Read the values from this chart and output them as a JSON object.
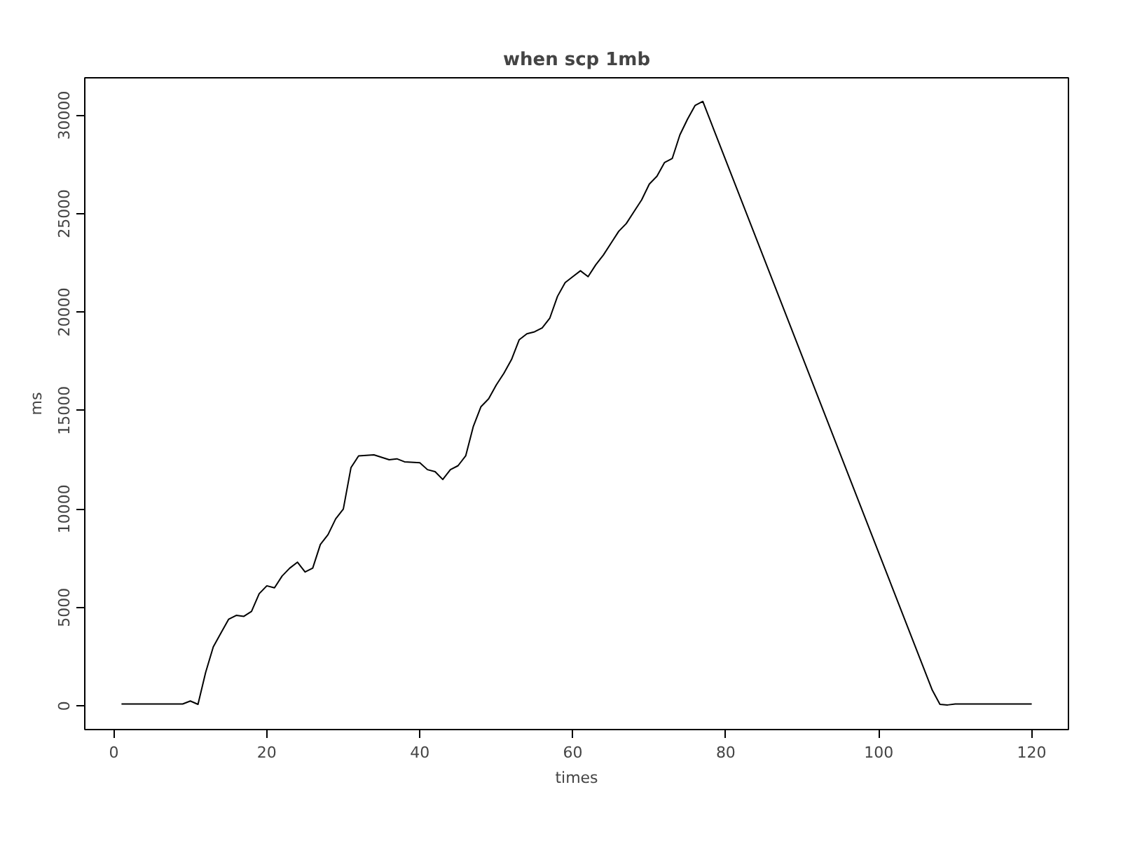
{
  "chart_data": {
    "type": "line",
    "title": "when scp 1mb",
    "xlabel": "times",
    "ylabel": "ms",
    "color": "#000000",
    "x": [
      1,
      9,
      10,
      11,
      12,
      13,
      14,
      15,
      16,
      17,
      18,
      19,
      20,
      21,
      22,
      23,
      24,
      25,
      26,
      27,
      28,
      29,
      30,
      31,
      32,
      34,
      36,
      37,
      38,
      40,
      41,
      42,
      43,
      44,
      45,
      46,
      47,
      48,
      49,
      50,
      51,
      52,
      53,
      54,
      55,
      56,
      57,
      58,
      59,
      60,
      61,
      62,
      63,
      64,
      65,
      66,
      67,
      68,
      69,
      70,
      71,
      72,
      73,
      74,
      75,
      76,
      77,
      107,
      108,
      109,
      110,
      120
    ],
    "values": [
      100,
      100,
      250,
      80,
      1700,
      3000,
      3700,
      4400,
      4600,
      4550,
      4800,
      5700,
      6100,
      6000,
      6600,
      7000,
      7300,
      6800,
      7000,
      8200,
      8700,
      9500,
      10000,
      12100,
      12700,
      12750,
      12500,
      12550,
      12400,
      12350,
      12000,
      11900,
      11500,
      12000,
      12200,
      12700,
      14200,
      15200,
      15600,
      16300,
      16900,
      17600,
      18600,
      18900,
      19000,
      19200,
      19700,
      20800,
      21500,
      21800,
      22100,
      21800,
      22400,
      22900,
      23500,
      24100,
      24500,
      25100,
      25700,
      26500,
      26900,
      27600,
      27800,
      29000,
      29800,
      30500,
      30700,
      800,
      80,
      50,
      100,
      100
    ],
    "xlim": [
      -3.8,
      124.8
    ],
    "ylim": [
      -1200,
      31900
    ],
    "xticks": [
      0,
      20,
      40,
      60,
      80,
      100,
      120
    ],
    "yticks": [
      0,
      5000,
      10000,
      15000,
      20000,
      25000,
      30000
    ],
    "grid": false,
    "marker": "none",
    "line_style": "solid"
  }
}
